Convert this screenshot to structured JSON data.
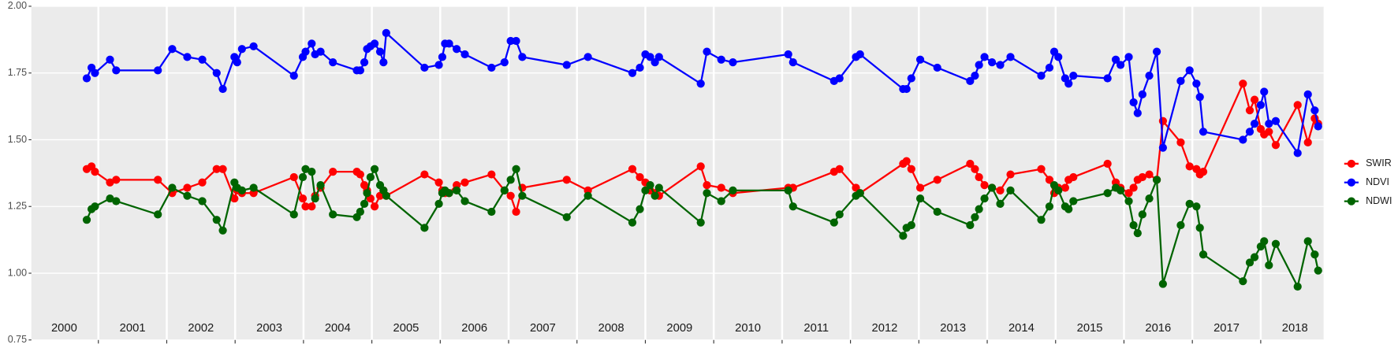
{
  "chart_data": {
    "type": "line",
    "x": [
      2000.83,
      2000.9,
      2000.95,
      2001.17,
      2001.26,
      2001.87,
      2002.08,
      2002.3,
      2002.52,
      2002.73,
      2002.82,
      2002.99,
      2003.03,
      2003.1,
      2003.27,
      2003.86,
      2003.99,
      2004.03,
      2004.12,
      2004.17,
      2004.25,
      2004.43,
      2004.78,
      2004.83,
      2004.89,
      2004.93,
      2004.98,
      2005.04,
      2005.12,
      2005.17,
      2005.21,
      2005.77,
      2005.98,
      2006.03,
      2006.07,
      2006.13,
      2006.24,
      2006.36,
      2006.75,
      2006.94,
      2007.03,
      2007.11,
      2007.2,
      2007.85,
      2008.16,
      2008.81,
      2008.92,
      2009,
      2009.07,
      2009.14,
      2009.2,
      2009.81,
      2009.9,
      2010.11,
      2010.28,
      2011.09,
      2011.16,
      2011.76,
      2011.84,
      2012.08,
      2012.14,
      2012.77,
      2012.82,
      2012.89,
      2013.02,
      2013.27,
      2013.75,
      2013.82,
      2013.88,
      2013.96,
      2014.07,
      2014.19,
      2014.34,
      2014.79,
      2014.91,
      2014.98,
      2015.04,
      2015.14,
      2015.19,
      2015.26,
      2015.76,
      2015.88,
      2015.95,
      2016.07,
      2016.14,
      2016.2,
      2016.27,
      2016.37,
      2016.48,
      2016.57,
      2016.83,
      2016.96,
      2017.06,
      2017.11,
      2017.16,
      2017.74,
      2017.84,
      2017.91,
      2018,
      2018.05,
      2018.12,
      2018.22,
      2018.54,
      2018.69,
      2018.79,
      2018.84
    ],
    "series": [
      {
        "name": "SWIR",
        "color": "#ff0000",
        "values": [
          1.39,
          1.4,
          1.38,
          1.34,
          1.35,
          1.35,
          1.3,
          1.32,
          1.34,
          1.39,
          1.39,
          1.28,
          1.31,
          1.3,
          1.3,
          1.36,
          1.28,
          1.25,
          1.25,
          1.29,
          1.32,
          1.38,
          1.38,
          1.37,
          1.33,
          1.31,
          1.28,
          1.25,
          1.29,
          1.31,
          1.29,
          1.37,
          1.34,
          1.31,
          1.3,
          1.3,
          1.33,
          1.34,
          1.37,
          1.31,
          1.29,
          1.23,
          1.32,
          1.35,
          1.31,
          1.39,
          1.36,
          1.34,
          1.31,
          1.3,
          1.29,
          1.4,
          1.33,
          1.32,
          1.3,
          1.32,
          1.32,
          1.38,
          1.39,
          1.32,
          1.3,
          1.41,
          1.42,
          1.39,
          1.32,
          1.35,
          1.41,
          1.39,
          1.36,
          1.33,
          1.32,
          1.31,
          1.37,
          1.39,
          1.35,
          1.3,
          1.32,
          1.32,
          1.35,
          1.36,
          1.41,
          1.34,
          1.32,
          1.3,
          1.32,
          1.35,
          1.36,
          1.37,
          1.35,
          1.57,
          1.49,
          1.4,
          1.39,
          1.37,
          1.38,
          1.71,
          1.61,
          1.65,
          1.54,
          1.52,
          1.53,
          1.48,
          1.63,
          1.49,
          1.58,
          1.56
        ]
      },
      {
        "name": "NDVI",
        "color": "#0000ff",
        "values": [
          1.73,
          1.77,
          1.75,
          1.8,
          1.76,
          1.76,
          1.84,
          1.81,
          1.8,
          1.75,
          1.69,
          1.81,
          1.79,
          1.84,
          1.85,
          1.74,
          1.81,
          1.83,
          1.86,
          1.82,
          1.83,
          1.79,
          1.76,
          1.76,
          1.79,
          1.84,
          1.85,
          1.86,
          1.83,
          1.79,
          1.9,
          1.77,
          1.78,
          1.81,
          1.86,
          1.86,
          1.84,
          1.82,
          1.77,
          1.79,
          1.87,
          1.87,
          1.81,
          1.78,
          1.81,
          1.75,
          1.77,
          1.82,
          1.81,
          1.79,
          1.81,
          1.71,
          1.83,
          1.8,
          1.79,
          1.82,
          1.79,
          1.72,
          1.73,
          1.81,
          1.82,
          1.69,
          1.69,
          1.73,
          1.8,
          1.77,
          1.72,
          1.74,
          1.78,
          1.81,
          1.79,
          1.78,
          1.81,
          1.74,
          1.77,
          1.83,
          1.81,
          1.73,
          1.71,
          1.74,
          1.73,
          1.8,
          1.78,
          1.81,
          1.64,
          1.6,
          1.67,
          1.74,
          1.83,
          1.47,
          1.72,
          1.76,
          1.71,
          1.66,
          1.53,
          1.5,
          1.53,
          1.56,
          1.63,
          1.68,
          1.56,
          1.57,
          1.45,
          1.67,
          1.61,
          1.55
        ]
      },
      {
        "name": "NDWI",
        "color": "#006400",
        "values": [
          1.2,
          1.24,
          1.25,
          1.28,
          1.27,
          1.22,
          1.32,
          1.29,
          1.27,
          1.2,
          1.16,
          1.34,
          1.32,
          1.31,
          1.32,
          1.22,
          1.36,
          1.39,
          1.38,
          1.28,
          1.33,
          1.22,
          1.21,
          1.23,
          1.26,
          1.3,
          1.36,
          1.39,
          1.33,
          1.31,
          1.29,
          1.17,
          1.26,
          1.3,
          1.31,
          1.3,
          1.31,
          1.27,
          1.23,
          1.31,
          1.35,
          1.39,
          1.29,
          1.21,
          1.29,
          1.19,
          1.24,
          1.31,
          1.33,
          1.29,
          1.32,
          1.19,
          1.3,
          1.27,
          1.31,
          1.31,
          1.25,
          1.19,
          1.22,
          1.29,
          1.3,
          1.14,
          1.17,
          1.18,
          1.28,
          1.23,
          1.18,
          1.21,
          1.24,
          1.28,
          1.32,
          1.26,
          1.31,
          1.2,
          1.25,
          1.33,
          1.31,
          1.25,
          1.24,
          1.27,
          1.3,
          1.32,
          1.31,
          1.27,
          1.18,
          1.15,
          1.22,
          1.28,
          1.35,
          0.96,
          1.18,
          1.26,
          1.25,
          1.17,
          1.07,
          0.97,
          1.04,
          1.06,
          1.1,
          1.12,
          1.03,
          1.11,
          0.95,
          1.12,
          1.07,
          1.01
        ]
      }
    ],
    "xlim": [
      2000.02,
      2018.92
    ],
    "xgrid": [
      2001,
      2002,
      2003,
      2004,
      2005,
      2006,
      2007,
      2008,
      2009,
      2010,
      2011,
      2012,
      2013,
      2014,
      2015,
      2016,
      2017,
      2018
    ],
    "year_labels": [
      {
        "value": 2000.5,
        "label": "2000"
      },
      {
        "value": 2001.5,
        "label": "2001"
      },
      {
        "value": 2002.5,
        "label": "2002"
      },
      {
        "value": 2003.5,
        "label": "2003"
      },
      {
        "value": 2004.5,
        "label": "2004"
      },
      {
        "value": 2005.5,
        "label": "2005"
      },
      {
        "value": 2006.5,
        "label": "2006"
      },
      {
        "value": 2007.5,
        "label": "2007"
      },
      {
        "value": 2008.5,
        "label": "2008"
      },
      {
        "value": 2009.5,
        "label": "2009"
      },
      {
        "value": 2010.5,
        "label": "2010"
      },
      {
        "value": 2011.5,
        "label": "2011"
      },
      {
        "value": 2012.5,
        "label": "2012"
      },
      {
        "value": 2013.5,
        "label": "2013"
      },
      {
        "value": 2014.5,
        "label": "2014"
      },
      {
        "value": 2015.5,
        "label": "2015"
      },
      {
        "value": 2016.5,
        "label": "2016"
      },
      {
        "value": 2017.5,
        "label": "2017"
      },
      {
        "value": 2018.5,
        "label": "2018"
      }
    ],
    "ylim": [
      0.75,
      2.0
    ],
    "yticks": [
      {
        "value": 0.75,
        "label": "0.75"
      },
      {
        "value": 1.0,
        "label": "1.00"
      },
      {
        "value": 1.25,
        "label": "1.25"
      },
      {
        "value": 1.5,
        "label": "1.50"
      },
      {
        "value": 1.75,
        "label": "1.75"
      },
      {
        "value": 2.0,
        "label": "2.00"
      }
    ],
    "grid": true
  }
}
